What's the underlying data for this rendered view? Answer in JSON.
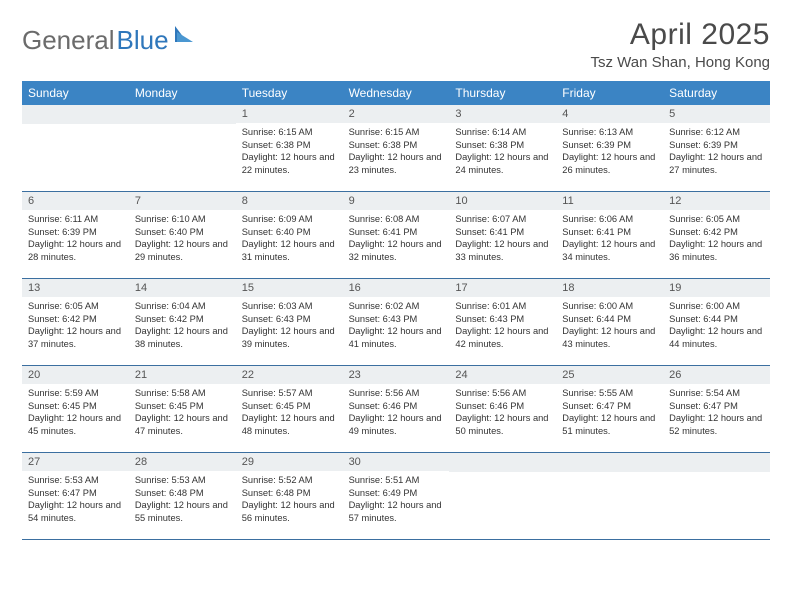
{
  "logo": {
    "text_a": "General",
    "text_b": "Blue",
    "icon_color": "#2f77bb"
  },
  "header": {
    "month_title": "April 2025",
    "location": "Tsz Wan Shan, Hong Kong"
  },
  "colors": {
    "header_bg": "#3b84c4",
    "header_fg": "#ffffff",
    "daynum_bg": "#eceff1",
    "row_divider": "#3b6fa0",
    "text": "#333333",
    "title_text": "#4a4a4a"
  },
  "dow": [
    "Sunday",
    "Monday",
    "Tuesday",
    "Wednesday",
    "Thursday",
    "Friday",
    "Saturday"
  ],
  "weeks": [
    [
      {
        "n": "",
        "sr": "",
        "ss": "",
        "dl": ""
      },
      {
        "n": "",
        "sr": "",
        "ss": "",
        "dl": ""
      },
      {
        "n": "1",
        "sr": "Sunrise: 6:15 AM",
        "ss": "Sunset: 6:38 PM",
        "dl": "Daylight: 12 hours and 22 minutes."
      },
      {
        "n": "2",
        "sr": "Sunrise: 6:15 AM",
        "ss": "Sunset: 6:38 PM",
        "dl": "Daylight: 12 hours and 23 minutes."
      },
      {
        "n": "3",
        "sr": "Sunrise: 6:14 AM",
        "ss": "Sunset: 6:38 PM",
        "dl": "Daylight: 12 hours and 24 minutes."
      },
      {
        "n": "4",
        "sr": "Sunrise: 6:13 AM",
        "ss": "Sunset: 6:39 PM",
        "dl": "Daylight: 12 hours and 26 minutes."
      },
      {
        "n": "5",
        "sr": "Sunrise: 6:12 AM",
        "ss": "Sunset: 6:39 PM",
        "dl": "Daylight: 12 hours and 27 minutes."
      }
    ],
    [
      {
        "n": "6",
        "sr": "Sunrise: 6:11 AM",
        "ss": "Sunset: 6:39 PM",
        "dl": "Daylight: 12 hours and 28 minutes."
      },
      {
        "n": "7",
        "sr": "Sunrise: 6:10 AM",
        "ss": "Sunset: 6:40 PM",
        "dl": "Daylight: 12 hours and 29 minutes."
      },
      {
        "n": "8",
        "sr": "Sunrise: 6:09 AM",
        "ss": "Sunset: 6:40 PM",
        "dl": "Daylight: 12 hours and 31 minutes."
      },
      {
        "n": "9",
        "sr": "Sunrise: 6:08 AM",
        "ss": "Sunset: 6:41 PM",
        "dl": "Daylight: 12 hours and 32 minutes."
      },
      {
        "n": "10",
        "sr": "Sunrise: 6:07 AM",
        "ss": "Sunset: 6:41 PM",
        "dl": "Daylight: 12 hours and 33 minutes."
      },
      {
        "n": "11",
        "sr": "Sunrise: 6:06 AM",
        "ss": "Sunset: 6:41 PM",
        "dl": "Daylight: 12 hours and 34 minutes."
      },
      {
        "n": "12",
        "sr": "Sunrise: 6:05 AM",
        "ss": "Sunset: 6:42 PM",
        "dl": "Daylight: 12 hours and 36 minutes."
      }
    ],
    [
      {
        "n": "13",
        "sr": "Sunrise: 6:05 AM",
        "ss": "Sunset: 6:42 PM",
        "dl": "Daylight: 12 hours and 37 minutes."
      },
      {
        "n": "14",
        "sr": "Sunrise: 6:04 AM",
        "ss": "Sunset: 6:42 PM",
        "dl": "Daylight: 12 hours and 38 minutes."
      },
      {
        "n": "15",
        "sr": "Sunrise: 6:03 AM",
        "ss": "Sunset: 6:43 PM",
        "dl": "Daylight: 12 hours and 39 minutes."
      },
      {
        "n": "16",
        "sr": "Sunrise: 6:02 AM",
        "ss": "Sunset: 6:43 PM",
        "dl": "Daylight: 12 hours and 41 minutes."
      },
      {
        "n": "17",
        "sr": "Sunrise: 6:01 AM",
        "ss": "Sunset: 6:43 PM",
        "dl": "Daylight: 12 hours and 42 minutes."
      },
      {
        "n": "18",
        "sr": "Sunrise: 6:00 AM",
        "ss": "Sunset: 6:44 PM",
        "dl": "Daylight: 12 hours and 43 minutes."
      },
      {
        "n": "19",
        "sr": "Sunrise: 6:00 AM",
        "ss": "Sunset: 6:44 PM",
        "dl": "Daylight: 12 hours and 44 minutes."
      }
    ],
    [
      {
        "n": "20",
        "sr": "Sunrise: 5:59 AM",
        "ss": "Sunset: 6:45 PM",
        "dl": "Daylight: 12 hours and 45 minutes."
      },
      {
        "n": "21",
        "sr": "Sunrise: 5:58 AM",
        "ss": "Sunset: 6:45 PM",
        "dl": "Daylight: 12 hours and 47 minutes."
      },
      {
        "n": "22",
        "sr": "Sunrise: 5:57 AM",
        "ss": "Sunset: 6:45 PM",
        "dl": "Daylight: 12 hours and 48 minutes."
      },
      {
        "n": "23",
        "sr": "Sunrise: 5:56 AM",
        "ss": "Sunset: 6:46 PM",
        "dl": "Daylight: 12 hours and 49 minutes."
      },
      {
        "n": "24",
        "sr": "Sunrise: 5:56 AM",
        "ss": "Sunset: 6:46 PM",
        "dl": "Daylight: 12 hours and 50 minutes."
      },
      {
        "n": "25",
        "sr": "Sunrise: 5:55 AM",
        "ss": "Sunset: 6:47 PM",
        "dl": "Daylight: 12 hours and 51 minutes."
      },
      {
        "n": "26",
        "sr": "Sunrise: 5:54 AM",
        "ss": "Sunset: 6:47 PM",
        "dl": "Daylight: 12 hours and 52 minutes."
      }
    ],
    [
      {
        "n": "27",
        "sr": "Sunrise: 5:53 AM",
        "ss": "Sunset: 6:47 PM",
        "dl": "Daylight: 12 hours and 54 minutes."
      },
      {
        "n": "28",
        "sr": "Sunrise: 5:53 AM",
        "ss": "Sunset: 6:48 PM",
        "dl": "Daylight: 12 hours and 55 minutes."
      },
      {
        "n": "29",
        "sr": "Sunrise: 5:52 AM",
        "ss": "Sunset: 6:48 PM",
        "dl": "Daylight: 12 hours and 56 minutes."
      },
      {
        "n": "30",
        "sr": "Sunrise: 5:51 AM",
        "ss": "Sunset: 6:49 PM",
        "dl": "Daylight: 12 hours and 57 minutes."
      },
      {
        "n": "",
        "sr": "",
        "ss": "",
        "dl": ""
      },
      {
        "n": "",
        "sr": "",
        "ss": "",
        "dl": ""
      },
      {
        "n": "",
        "sr": "",
        "ss": "",
        "dl": ""
      }
    ]
  ]
}
